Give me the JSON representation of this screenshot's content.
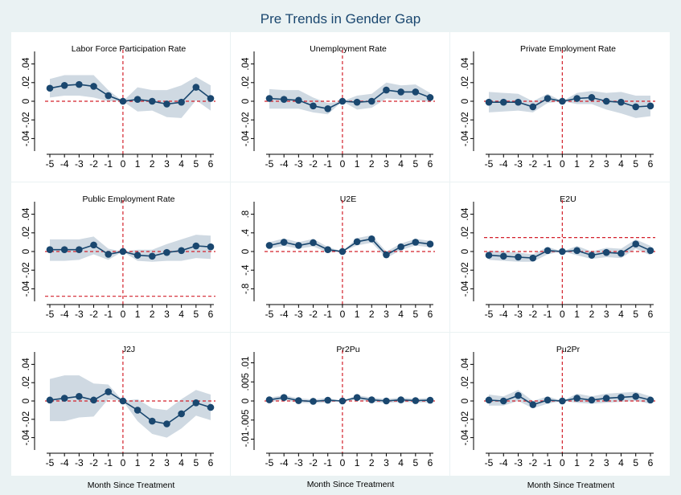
{
  "title": "Pre Trends in Gender Gap",
  "xaxis_label": "Month Since Treatment",
  "colors": {
    "background": "#eaf2f3",
    "panel": "#ffffff",
    "band": "#cfd9e2",
    "line": "#1a476f",
    "ref": "#d3202b"
  },
  "chart_data": [
    {
      "type": "line",
      "title": "Labor Force Participation Rate",
      "x": [
        -5,
        -4,
        -3,
        -2,
        -1,
        0,
        1,
        2,
        3,
        4,
        5,
        6
      ],
      "values": [
        0.014,
        0.017,
        0.018,
        0.016,
        0.006,
        0.0,
        0.002,
        0.0,
        -0.003,
        -0.001,
        0.015,
        0.003
      ],
      "ci_low": [
        0.004,
        0.006,
        0.006,
        0.004,
        0.0,
        0.0,
        -0.011,
        -0.01,
        -0.017,
        -0.018,
        0.001,
        -0.01
      ],
      "ci_high": [
        0.024,
        0.028,
        0.028,
        0.028,
        0.012,
        0.0,
        0.015,
        0.012,
        0.012,
        0.017,
        0.026,
        0.017
      ],
      "ylim": [
        -0.05,
        0.05
      ],
      "yticks": [
        -0.04,
        -0.02,
        0,
        0.02,
        0.04
      ],
      "ytick_labels": [
        "-.04",
        "-.02",
        "0",
        ".02",
        ".04"
      ],
      "hline": 0
    },
    {
      "type": "line",
      "title": "Unemployment Rate",
      "x": [
        -5,
        -4,
        -3,
        -2,
        -1,
        0,
        1,
        2,
        3,
        4,
        5,
        6
      ],
      "values": [
        0.003,
        0.002,
        0.001,
        -0.005,
        -0.008,
        0.0,
        -0.001,
        0.0,
        0.012,
        0.01,
        0.01,
        0.004
      ],
      "ci_low": [
        -0.008,
        -0.008,
        -0.008,
        -0.012,
        -0.014,
        0.0,
        -0.009,
        -0.007,
        0.003,
        0.002,
        0.002,
        -0.001
      ],
      "ci_high": [
        0.013,
        0.012,
        0.012,
        0.004,
        -0.002,
        0.0,
        0.006,
        0.008,
        0.02,
        0.017,
        0.018,
        0.009
      ],
      "ylim": [
        -0.05,
        0.05
      ],
      "yticks": [
        -0.04,
        -0.02,
        0,
        0.02,
        0.04
      ],
      "ytick_labels": [
        "-.04",
        "-.02",
        "0",
        ".02",
        ".04"
      ],
      "hline": 0
    },
    {
      "type": "line",
      "title": "Private Employment Rate",
      "x": [
        -5,
        -4,
        -3,
        -2,
        -1,
        0,
        1,
        2,
        3,
        4,
        5,
        6
      ],
      "values": [
        -0.001,
        -0.001,
        -0.001,
        -0.006,
        0.003,
        0.0,
        0.003,
        0.004,
        0.0,
        -0.001,
        -0.006,
        -0.005
      ],
      "ci_low": [
        -0.012,
        -0.011,
        -0.01,
        -0.012,
        -0.002,
        0.0,
        -0.003,
        -0.003,
        -0.009,
        -0.013,
        -0.018,
        -0.016
      ],
      "ci_high": [
        0.01,
        0.009,
        0.008,
        0.0,
        0.008,
        0.0,
        0.009,
        0.011,
        0.009,
        0.01,
        0.006,
        0.006
      ],
      "ylim": [
        -0.05,
        0.05
      ],
      "yticks": [
        -0.04,
        -0.02,
        0,
        0.02,
        0.04
      ],
      "ytick_labels": [
        "-.04",
        "-.02",
        "0",
        ".02",
        ".04"
      ],
      "hline": 0
    },
    {
      "type": "line",
      "title": "Public Employment Rate",
      "x": [
        -5,
        -4,
        -3,
        -2,
        -1,
        0,
        1,
        2,
        3,
        4,
        5,
        6
      ],
      "values": [
        0.002,
        0.002,
        0.002,
        0.007,
        -0.003,
        0.0,
        -0.004,
        -0.005,
        -0.001,
        0.001,
        0.006,
        0.005
      ],
      "ci_low": [
        -0.01,
        -0.01,
        -0.009,
        -0.003,
        -0.009,
        0.0,
        -0.01,
        -0.011,
        -0.01,
        -0.01,
        -0.007,
        -0.008
      ],
      "ci_high": [
        0.013,
        0.013,
        0.013,
        0.016,
        0.003,
        0.0,
        0.002,
        0.002,
        0.008,
        0.013,
        0.018,
        0.017
      ],
      "ylim": [
        -0.05,
        0.05
      ],
      "yticks": [
        -0.04,
        -0.02,
        0,
        0.02,
        0.04
      ],
      "ytick_labels": [
        "-.04",
        "-.02",
        "0",
        ".02",
        ".04"
      ],
      "hline": 0,
      "hline_extra": -0.048
    },
    {
      "type": "line",
      "title": "U2E",
      "x": [
        -5,
        -4,
        -3,
        -2,
        -1,
        0,
        1,
        2,
        3,
        4,
        5,
        6
      ],
      "values": [
        0.13,
        0.2,
        0.13,
        0.19,
        0.04,
        0.0,
        0.21,
        0.27,
        -0.07,
        0.1,
        0.2,
        0.16
      ],
      "ci_low": [
        0.06,
        0.12,
        0.06,
        0.11,
        -0.02,
        0.0,
        0.13,
        0.19,
        -0.14,
        0.03,
        0.13,
        0.09
      ],
      "ci_high": [
        0.2,
        0.28,
        0.2,
        0.27,
        0.1,
        0.0,
        0.29,
        0.35,
        0.0,
        0.17,
        0.27,
        0.23
      ],
      "ylim": [
        -1.0,
        1.0
      ],
      "yticks": [
        -0.8,
        -0.4,
        0,
        0.4,
        0.8
      ],
      "ytick_labels": [
        "-.8",
        "-.4",
        "0",
        ".4",
        ".8"
      ],
      "hline": 0
    },
    {
      "type": "line",
      "title": "E2U",
      "x": [
        -5,
        -4,
        -3,
        -2,
        -1,
        0,
        1,
        2,
        3,
        4,
        5,
        6
      ],
      "values": [
        -0.004,
        -0.005,
        -0.006,
        -0.007,
        0.001,
        0.0,
        0.001,
        -0.004,
        -0.001,
        -0.002,
        0.008,
        0.001
      ],
      "ci_low": [
        -0.009,
        -0.01,
        -0.011,
        -0.011,
        -0.003,
        0.0,
        -0.004,
        -0.008,
        -0.006,
        -0.007,
        0.003,
        -0.004
      ],
      "ci_high": [
        0.001,
        0.0,
        -0.001,
        -0.003,
        0.005,
        0.0,
        0.006,
        0.0,
        0.004,
        0.003,
        0.013,
        0.006
      ],
      "ylim": [
        -0.05,
        0.05
      ],
      "yticks": [
        -0.04,
        -0.02,
        0,
        0.02,
        0.04
      ],
      "ytick_labels": [
        "-.04",
        "-.02",
        "0",
        ".02",
        ".04"
      ],
      "hline": 0,
      "hline_extra": 0.015
    },
    {
      "type": "line",
      "title": "J2J",
      "x": [
        -5,
        -4,
        -3,
        -2,
        -1,
        0,
        1,
        2,
        3,
        4,
        5,
        6
      ],
      "values": [
        0.001,
        0.003,
        0.005,
        0.001,
        0.01,
        0.0,
        -0.01,
        -0.022,
        -0.025,
        -0.014,
        -0.002,
        -0.007
      ],
      "ci_low": [
        -0.022,
        -0.022,
        -0.018,
        -0.017,
        0.002,
        0.0,
        -0.022,
        -0.036,
        -0.04,
        -0.03,
        -0.016,
        -0.021
      ],
      "ci_high": [
        0.024,
        0.028,
        0.028,
        0.019,
        0.018,
        0.0,
        0.002,
        -0.008,
        -0.01,
        0.002,
        0.012,
        0.007
      ],
      "ylim": [
        -0.05,
        0.05
      ],
      "yticks": [
        -0.04,
        -0.02,
        0,
        0.02,
        0.04
      ],
      "ytick_labels": [
        "-.04",
        "-.02",
        "0",
        ".02",
        ".04"
      ],
      "hline": 0
    },
    {
      "type": "line",
      "title": "Pr2Pu",
      "x": [
        -5,
        -4,
        -3,
        -2,
        -1,
        0,
        1,
        2,
        3,
        4,
        5,
        6
      ],
      "values": [
        0.0003,
        0.0009,
        0.0001,
        -0.0001,
        0.0002,
        0.0,
        0.0009,
        0.0003,
        0.0,
        0.0003,
        0.0001,
        0.0002
      ],
      "ci_low": [
        -0.0003,
        0.0003,
        -0.0005,
        -0.0006,
        -0.0004,
        0.0,
        0.0003,
        -0.0003,
        -0.0005,
        -0.0003,
        -0.0004,
        -0.0004
      ],
      "ci_high": [
        0.0009,
        0.0015,
        0.0007,
        0.0004,
        0.0008,
        0.0,
        0.0015,
        0.0009,
        0.0005,
        0.0009,
        0.0006,
        0.0008
      ],
      "ylim": [
        -0.012,
        0.012
      ],
      "yticks": [
        -0.01,
        -0.005,
        0,
        0.005,
        0.01
      ],
      "ytick_labels": [
        "-.01",
        "-.005",
        "0",
        ".005",
        ".01"
      ],
      "hline": 0
    },
    {
      "type": "line",
      "title": "Pu2Pr",
      "x": [
        -5,
        -4,
        -3,
        -2,
        -1,
        0,
        1,
        2,
        3,
        4,
        5,
        6
      ],
      "values": [
        0.001,
        0.0,
        0.006,
        -0.004,
        0.001,
        0.0,
        0.003,
        0.001,
        0.003,
        0.004,
        0.005,
        0.001
      ],
      "ci_low": [
        -0.005,
        -0.005,
        0.0,
        -0.008,
        -0.003,
        0.0,
        -0.002,
        -0.003,
        -0.002,
        -0.001,
        0.0,
        -0.003
      ],
      "ci_high": [
        0.007,
        0.005,
        0.012,
        0.0,
        0.005,
        0.0,
        0.008,
        0.005,
        0.008,
        0.009,
        0.01,
        0.005
      ],
      "ylim": [
        -0.05,
        0.05
      ],
      "yticks": [
        -0.04,
        -0.02,
        0,
        0.02,
        0.04
      ],
      "ytick_labels": [
        "-.04",
        "-.02",
        "0",
        ".02",
        ".04"
      ],
      "hline": 0
    }
  ]
}
